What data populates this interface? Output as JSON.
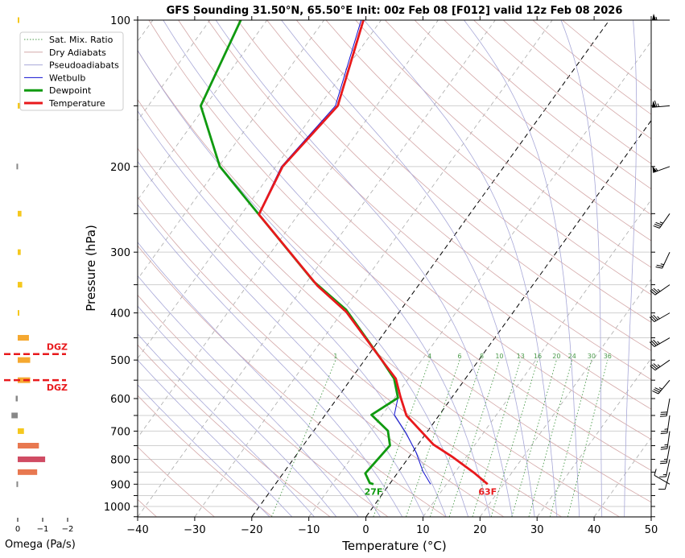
{
  "chart_data": {
    "type": "skewt",
    "title": "GFS Sounding 31.50°N, 65.50°E Init: 00z Feb 08 [F012] valid 12z Feb 08 2026",
    "xlabel": "Temperature (°C)",
    "ylabel": "Pressure (hPa)",
    "xlim": [
      -40,
      50
    ],
    "ylim": [
      1050,
      100
    ],
    "xticks": [
      -40,
      -30,
      -20,
      -10,
      0,
      10,
      20,
      30,
      40,
      50
    ],
    "xtick_labels": [
      "−40",
      "−30",
      "−20",
      "−10",
      "0",
      "10",
      "20",
      "30",
      "40",
      "50"
    ],
    "yticks": [
      100,
      200,
      300,
      400,
      500,
      600,
      700,
      800,
      900,
      1000
    ],
    "ytick_labels": [
      "100",
      "200",
      "300",
      "400",
      "500",
      "600",
      "700",
      "800",
      "900",
      "1000"
    ],
    "highlight_isotherms": [
      -20,
      0
    ],
    "legend": {
      "placement": "top-left",
      "entries": [
        "Sat. Mix. Ratio",
        "Dry Adiabats",
        "Pseudoadiabats",
        "Wetbulb",
        "Dewpoint",
        "Temperature"
      ]
    },
    "colors": {
      "temperature": "#e8191c",
      "dewpoint": "#109a10",
      "wetbulb": "#1010d0",
      "dry_adiabat": "#d4a8a8",
      "pseudoadiabat": "#a8a8d8",
      "mixing_ratio": "#4a9a4a"
    },
    "mixing_ratio_labels": [
      "1",
      "4",
      "6",
      "8",
      "10",
      "13",
      "16",
      "20",
      "24",
      "30",
      "36"
    ],
    "series": [
      {
        "name": "Temperature",
        "p": [
          900,
          855,
          793,
          746,
          650,
          595,
          546,
          502,
          398,
          352,
          251,
          200,
          150,
          100
        ],
        "t": [
          17.2,
          13.6,
          7.8,
          2.7,
          -5.7,
          -9.1,
          -12.2,
          -16.8,
          -29.3,
          -37.6,
          -56.9,
          -58.8,
          -56.8,
          -63.1
        ]
      },
      {
        "name": "Dewpoint",
        "p": [
          900,
          895,
          855,
          749,
          699,
          648,
          598,
          546,
          502,
          394,
          345,
          251,
          200,
          150,
          100
        ],
        "t": [
          -2.8,
          -3.6,
          -5.6,
          -4.8,
          -7.0,
          -11.9,
          -9.4,
          -12.5,
          -16.8,
          -29.6,
          -38.8,
          -56.9,
          -69.8,
          -80.8,
          -84.6
        ]
      },
      {
        "name": "Wetbulb",
        "p": [
          900,
          846,
          775,
          707,
          648,
          598,
          546,
          502,
          398,
          352,
          251,
          200,
          150,
          100
        ],
        "t": [
          7.2,
          4.2,
          0.7,
          -3.5,
          -7.9,
          -9.4,
          -12.4,
          -16.9,
          -29.4,
          -37.7,
          -57.0,
          -59.0,
          -57.2,
          -63.5
        ]
      }
    ],
    "surface_labels": {
      "temperature": "63F",
      "dewpoint": "27F"
    },
    "omega": {
      "xlabel": "Omega (Pa/s)",
      "xticks": [
        0,
        -1,
        -2
      ],
      "xtick_labels": [
        "0",
        "−1",
        "−2"
      ],
      "p": [
        100,
        150,
        200,
        250,
        300,
        350,
        400,
        450,
        500,
        550,
        600,
        650,
        700,
        750,
        800,
        850,
        900
      ],
      "values": [
        -0.04,
        -0.08,
        0.05,
        -0.15,
        -0.12,
        -0.18,
        -0.06,
        -0.45,
        -0.5,
        -0.5,
        0.08,
        0.25,
        -0.25,
        -0.85,
        -1.1,
        -0.78,
        0.05
      ],
      "dgz_label": "DGZ",
      "dgz_p": [
        486,
        550
      ]
    },
    "winds": {
      "p": [
        100,
        150,
        200,
        250,
        300,
        350,
        400,
        450,
        500,
        550,
        600,
        650,
        700,
        750,
        800,
        850,
        900
      ],
      "dir_deg": [
        270,
        265,
        250,
        215,
        205,
        235,
        240,
        240,
        235,
        220,
        190,
        188,
        188,
        190,
        192,
        195,
        300
      ],
      "speed_kt": [
        55,
        65,
        55,
        35,
        25,
        35,
        35,
        35,
        35,
        35,
        30,
        25,
        25,
        25,
        15,
        10,
        10
      ]
    }
  }
}
